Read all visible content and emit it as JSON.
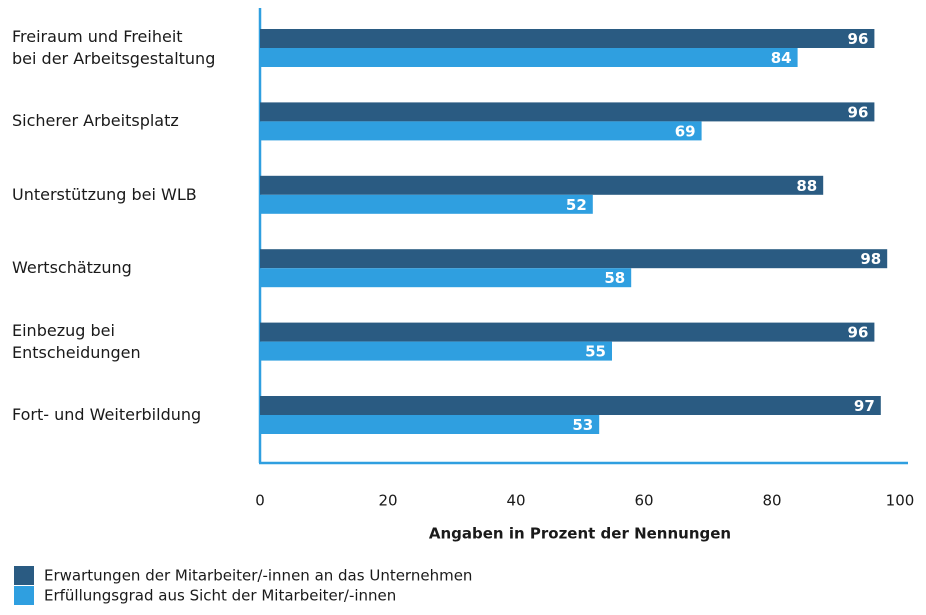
{
  "chart_data": {
    "type": "bar",
    "orientation": "horizontal",
    "categories": [
      "Freiraum und Freiheit\nbei der Arbeitsgestaltung",
      "Sicherer Arbeitsplatz",
      "Unterstützung bei WLB",
      "Wertschätzung",
      "Einbezug bei\nEntscheidungen",
      "Fort- und Weiterbildung"
    ],
    "series": [
      {
        "name": "Erwartungen der Mitarbeiter/-innen an das Unternehmen",
        "color": "#2a5b82",
        "values": [
          96,
          96,
          88,
          98,
          96,
          97
        ]
      },
      {
        "name": "Erfüllungsgrad aus Sicht der Mitarbeiter/-innen",
        "color": "#2f9fe0",
        "values": [
          84,
          69,
          52,
          58,
          55,
          53
        ]
      }
    ],
    "xlabel": "Angaben in Prozent der Nennungen",
    "xlim": [
      0,
      100
    ],
    "xticks": [
      0,
      20,
      40,
      60,
      80,
      100
    ],
    "grid": false,
    "legend": "bottom-left"
  }
}
